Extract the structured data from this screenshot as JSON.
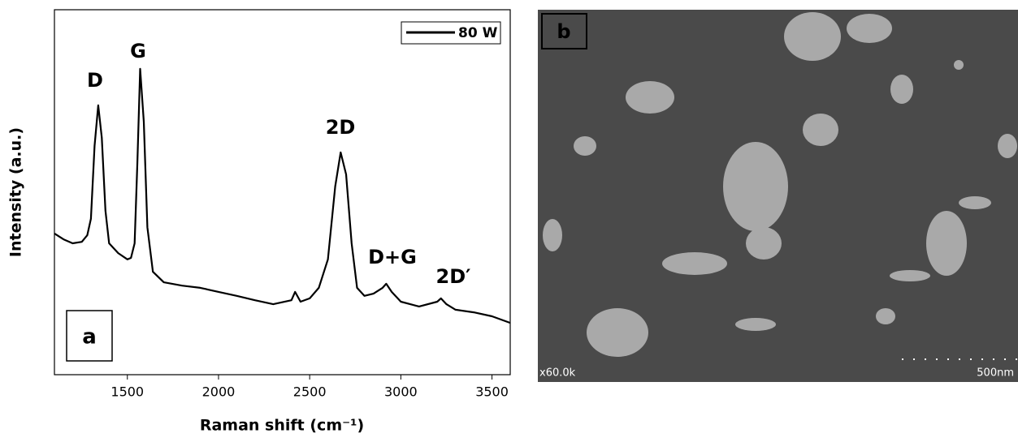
{
  "chart_data": {
    "type": "line",
    "x_label": "Raman shift (cm⁻¹)",
    "y_label": "Intensity (a.u.)",
    "panel_label": "a",
    "annotations": [
      "D",
      "G",
      "2D",
      "D+G",
      "2D′"
    ],
    "x": [
      1100,
      1150,
      1200,
      1250,
      1280,
      1300,
      1320,
      1340,
      1360,
      1380,
      1400,
      1450,
      1500,
      1520,
      1540,
      1555,
      1570,
      1590,
      1610,
      1640,
      1700,
      1800,
      1900,
      2000,
      2100,
      2200,
      2300,
      2400,
      2420,
      2450,
      2500,
      2550,
      2600,
      2640,
      2670,
      2700,
      2730,
      2760,
      2800,
      2850,
      2900,
      2920,
      2950,
      3000,
      3100,
      3200,
      3220,
      3250,
      3300,
      3400,
      3500,
      3600
    ],
    "series": [
      {
        "name": "80 W",
        "color": "#000000",
        "values": [
          38.7,
          37.1,
          36.0,
          36.4,
          38.2,
          42.7,
          62.7,
          73.8,
          64.9,
          44.9,
          36.0,
          33.3,
          31.6,
          32.0,
          36.0,
          58.2,
          83.8,
          69.3,
          40.4,
          28.2,
          25.3,
          24.4,
          23.8,
          22.7,
          21.6,
          20.4,
          19.3,
          20.4,
          22.7,
          20.0,
          20.9,
          23.8,
          31.6,
          51.6,
          60.9,
          54.9,
          36.0,
          23.8,
          21.6,
          22.2,
          23.8,
          24.9,
          22.7,
          20.0,
          18.7,
          20.0,
          20.9,
          19.3,
          17.8,
          17.1,
          16.0,
          14.2
        ]
      }
    ],
    "xlim": [
      1100,
      3600
    ],
    "xticks": [
      1500,
      2000,
      2500,
      3000,
      3500
    ],
    "ylim": [
      0,
      100
    ],
    "legend": "upper right"
  },
  "sem_image": {
    "label": "b",
    "magnification": "x60.0k",
    "scale_bar": "500nm"
  }
}
